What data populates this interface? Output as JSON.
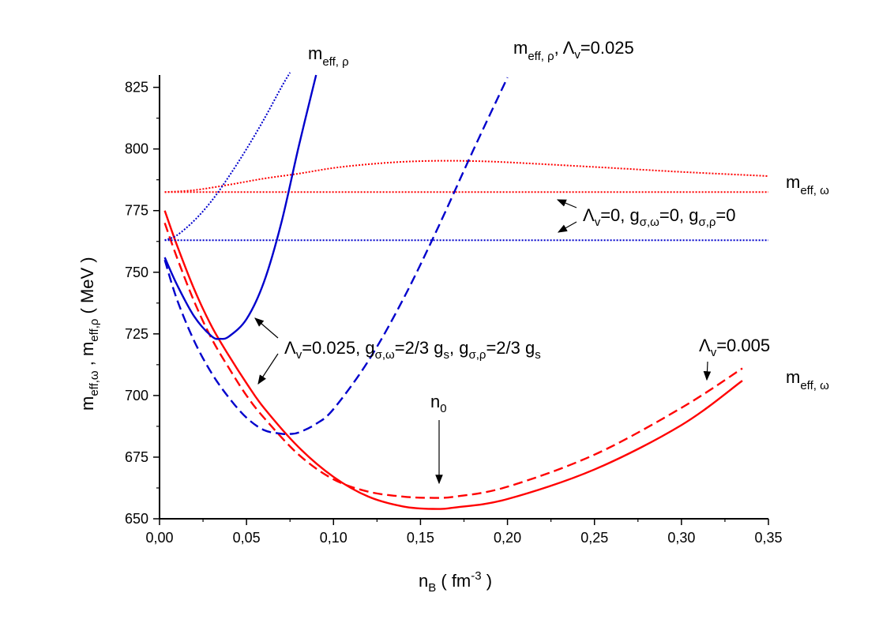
{
  "chart_data": {
    "type": "line",
    "xlabel": {
      "main": "n",
      "sub": "B",
      "rest": " ( fm",
      "sup": "-3",
      "close": " )"
    },
    "ylabel": {
      "p1": "m",
      "s1": "eff,ω",
      "p2": " , m",
      "s2": "eff,ρ",
      "p3": " ( MeV )"
    },
    "xlim": [
      0,
      0.35
    ],
    "ylim": [
      650,
      830
    ],
    "x_ticks": [
      0.0,
      0.05,
      0.1,
      0.15,
      0.2,
      0.25,
      0.3,
      0.35
    ],
    "x_tick_labels": [
      "0,00",
      "0,05",
      "0,10",
      "0,15",
      "0,20",
      "0,25",
      "0,30",
      "0,35"
    ],
    "y_ticks": [
      650,
      675,
      700,
      725,
      750,
      775,
      800,
      825
    ],
    "y_tick_labels": [
      "650",
      "675",
      "700",
      "725",
      "750",
      "775",
      "800",
      "825"
    ],
    "grid": false,
    "legend": "none",
    "series": [
      {
        "color": "#ff0000",
        "style": "solid",
        "x": [
          0.003,
          0.01,
          0.02,
          0.03,
          0.04,
          0.05,
          0.06,
          0.08,
          0.1,
          0.12,
          0.14,
          0.157,
          0.17,
          0.2,
          0.25,
          0.3,
          0.335
        ],
        "y": [
          775,
          761,
          743,
          728,
          716,
          705,
          695,
          679,
          667,
          659,
          655,
          654,
          654.6,
          658,
          670,
          688,
          706
        ]
      },
      {
        "color": "#ff0000",
        "style": "dashed",
        "x": [
          0.003,
          0.01,
          0.02,
          0.03,
          0.04,
          0.05,
          0.06,
          0.08,
          0.1,
          0.12,
          0.14,
          0.155,
          0.17,
          0.2,
          0.25,
          0.3,
          0.335
        ],
        "y": [
          770,
          756,
          738,
          723,
          711,
          700,
          691,
          676,
          666,
          661,
          659,
          658.5,
          659,
          663,
          676,
          695,
          711
        ]
      },
      {
        "color": "#ff0000",
        "style": "dotted",
        "x": [
          0.003,
          0.02,
          0.04,
          0.06,
          0.08,
          0.1,
          0.12,
          0.14,
          0.16,
          0.18,
          0.2,
          0.25,
          0.3,
          0.35
        ],
        "y": [
          782.5,
          783.3,
          785.5,
          788,
          790,
          792.3,
          793.8,
          794.8,
          795.2,
          795.1,
          794.6,
          792.7,
          790.7,
          789
        ]
      },
      {
        "color": "#ff0000",
        "style": "dotted",
        "x": [
          0.003,
          0.35
        ],
        "y": [
          782.5,
          782.5
        ]
      },
      {
        "color": "#0000cc",
        "style": "solid",
        "x": [
          0.003,
          0.01,
          0.02,
          0.03,
          0.035,
          0.04,
          0.05,
          0.06,
          0.07,
          0.08,
          0.09
        ],
        "y": [
          756,
          745,
          732,
          724,
          723,
          724,
          731,
          746,
          770,
          801,
          830
        ]
      },
      {
        "color": "#0000cc",
        "style": "dashed",
        "x": [
          0.003,
          0.01,
          0.02,
          0.03,
          0.04,
          0.05,
          0.06,
          0.07,
          0.075,
          0.08,
          0.09,
          0.1,
          0.12,
          0.14,
          0.16,
          0.18,
          0.2
        ],
        "y": [
          755,
          739,
          722,
          709,
          699,
          691,
          686,
          684.5,
          684.4,
          685,
          688.5,
          694.5,
          714,
          739,
          768,
          799,
          829
        ]
      },
      {
        "color": "#0000cc",
        "style": "dotted",
        "x": [
          0.003,
          0.01,
          0.02,
          0.03,
          0.04,
          0.05,
          0.06,
          0.07,
          0.075
        ],
        "y": [
          763,
          765,
          771,
          779,
          789,
          800,
          812,
          825,
          831
        ]
      },
      {
        "color": "#0000cc",
        "style": "dotted",
        "x": [
          0.003,
          0.35
        ],
        "y": [
          763,
          763
        ]
      }
    ],
    "annotations": {
      "m_eff_rho": {
        "main": "m",
        "sub": "eff, ρ"
      },
      "m_eff_rho_lambda": {
        "main": "m",
        "sub": "eff, ρ",
        "rest": ", Λ",
        "sub2": "v",
        "rest2": "=0.025"
      },
      "m_eff_omega_upper": {
        "main": "m",
        "sub": "eff, ω"
      },
      "m_eff_omega_lower": {
        "main": "m",
        "sub": "eff, ω"
      },
      "lambda_zero": {
        "a": "Λ",
        "a_sub": "v",
        "b": "=0, g",
        "b_sub": "σ,ω",
        "c": "=0, g",
        "c_sub": "σ,ρ",
        "d": "=0"
      },
      "lambda_0025": {
        "a": "Λ",
        "a_sub": "v",
        "b": "=0.025, g",
        "b_sub": "σ,ω",
        "c": "=2/3 g",
        "c_sub": "s",
        "d": ", g",
        "d_sub": "σ,ρ",
        "e": "=2/3 g",
        "e_sub": "s"
      },
      "lambda_0005": {
        "a": "Λ",
        "a_sub": "v",
        "b": "=0.005"
      },
      "n0": {
        "main": "n",
        "sub": "0"
      }
    }
  }
}
